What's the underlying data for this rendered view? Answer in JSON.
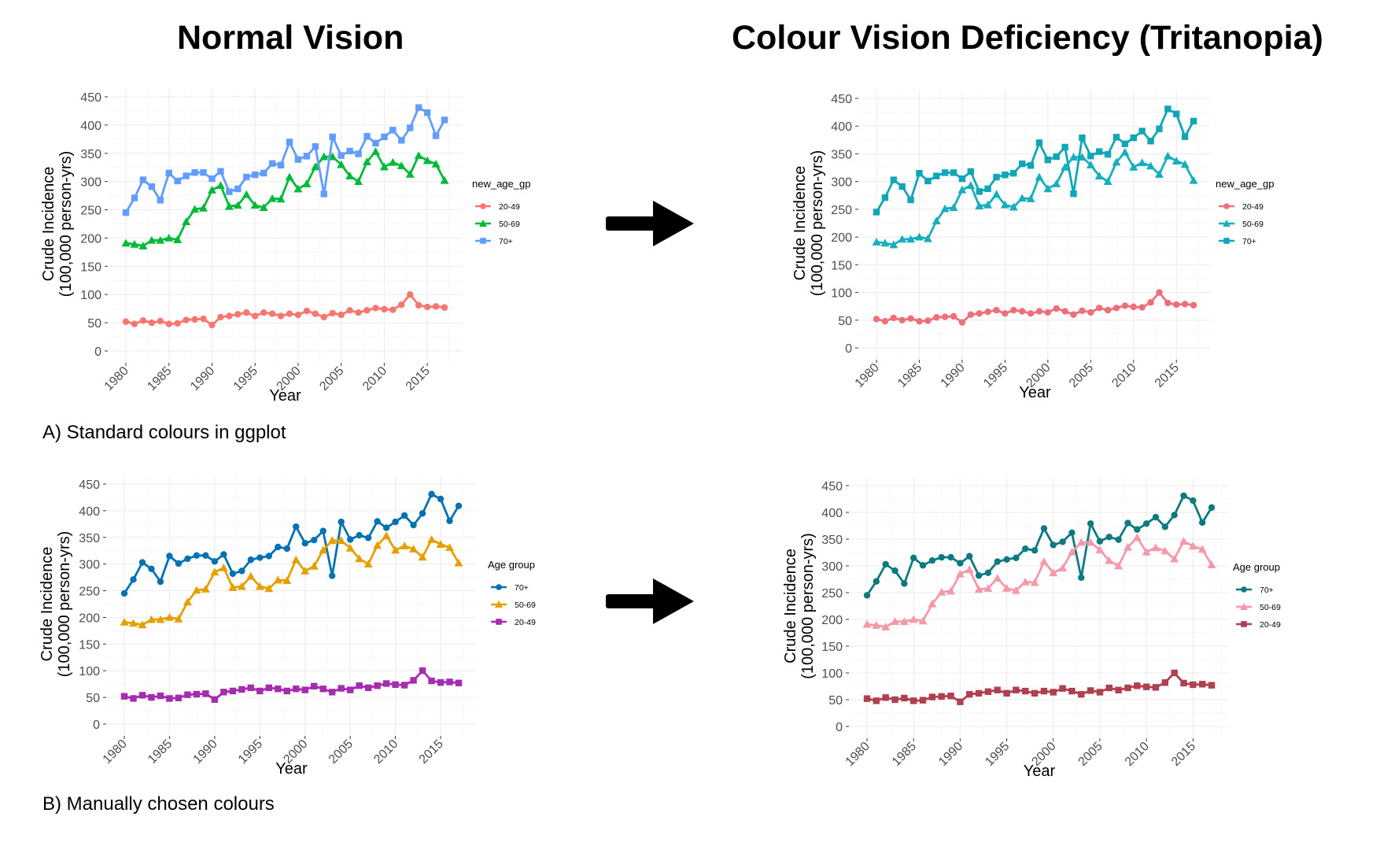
{
  "headings": {
    "left": "Normal Vision",
    "right": "Colour Vision Deficiency (Tritanopia)"
  },
  "captions": {
    "a": "A) Standard colours in ggplot",
    "b": "B) Manually chosen colours"
  },
  "icons": {
    "arrow_top": "right-arrow-icon",
    "arrow_bottom": "right-arrow-icon"
  },
  "chart_data": [
    {
      "type": "line",
      "xlabel": "Year",
      "ylabel": [
        "Crude Incidence",
        "(100,000 person-yrs)"
      ],
      "ylim": [
        0,
        450
      ],
      "xlim": [
        1980,
        2017
      ],
      "yticks": [
        0,
        50,
        100,
        150,
        200,
        250,
        300,
        350,
        400,
        450
      ],
      "xticks": [
        1980,
        1985,
        1990,
        1995,
        2000,
        2005,
        2010,
        2015
      ],
      "grid": true,
      "legend_title": "new_age_gp",
      "legend_placement": "right",
      "x": [
        1980,
        1981,
        1982,
        1983,
        1984,
        1985,
        1986,
        1987,
        1988,
        1989,
        1990,
        1991,
        1992,
        1993,
        1994,
        1995,
        1996,
        1997,
        1998,
        1999,
        2000,
        2001,
        2002,
        2003,
        2004,
        2005,
        2006,
        2007,
        2008,
        2009,
        2010,
        2011,
        2012,
        2013,
        2014,
        2015,
        2016,
        2017
      ],
      "series": [
        {
          "name": "20-49",
          "color": "#F8766D",
          "marker": "circle",
          "values": [
            52,
            48,
            54,
            50,
            53,
            48,
            49,
            55,
            56,
            57,
            46,
            60,
            62,
            65,
            68,
            62,
            68,
            66,
            62,
            66,
            64,
            71,
            66,
            60,
            67,
            64,
            72,
            68,
            72,
            76,
            74,
            73,
            82,
            100,
            81,
            78,
            79,
            77
          ]
        },
        {
          "name": "50-69",
          "color": "#00BA38",
          "marker": "triangle",
          "values": [
            191,
            189,
            186,
            196,
            196,
            200,
            197,
            229,
            251,
            253,
            285,
            293,
            256,
            258,
            277,
            258,
            254,
            270,
            269,
            308,
            287,
            296,
            326,
            344,
            344,
            330,
            310,
            300,
            335,
            353,
            326,
            334,
            328,
            313,
            346,
            337,
            331,
            302
          ]
        },
        {
          "name": "70+",
          "color": "#619CFF",
          "marker": "square",
          "values": [
            245,
            271,
            303,
            291,
            267,
            315,
            301,
            310,
            316,
            316,
            305,
            318,
            282,
            287,
            308,
            312,
            315,
            332,
            329,
            370,
            339,
            345,
            362,
            278,
            379,
            346,
            354,
            349,
            380,
            368,
            379,
            391,
            373,
            395,
            431,
            422,
            381,
            409
          ]
        }
      ]
    },
    {
      "type": "line",
      "xlabel": "Year",
      "ylabel": [
        "Crude Incidence",
        "(100,000 person-yrs)"
      ],
      "ylim": [
        0,
        450
      ],
      "xlim": [
        1980,
        2017
      ],
      "yticks": [
        0,
        50,
        100,
        150,
        200,
        250,
        300,
        350,
        400,
        450
      ],
      "xticks": [
        1980,
        1985,
        1990,
        1995,
        2000,
        2005,
        2010,
        2015
      ],
      "grid": true,
      "legend_title": "new_age_gp",
      "legend_placement": "right",
      "x": [
        1980,
        1981,
        1982,
        1983,
        1984,
        1985,
        1986,
        1987,
        1988,
        1989,
        1990,
        1991,
        1992,
        1993,
        1994,
        1995,
        1996,
        1997,
        1998,
        1999,
        2000,
        2001,
        2002,
        2003,
        2004,
        2005,
        2006,
        2007,
        2008,
        2009,
        2010,
        2011,
        2012,
        2013,
        2014,
        2015,
        2016,
        2017
      ],
      "series": [
        {
          "name": "20-49",
          "color": "#EE6E79",
          "marker": "circle",
          "values": [
            52,
            48,
            54,
            50,
            53,
            48,
            49,
            55,
            56,
            57,
            46,
            60,
            62,
            65,
            68,
            62,
            68,
            66,
            62,
            66,
            64,
            71,
            66,
            60,
            67,
            64,
            72,
            68,
            72,
            76,
            74,
            73,
            82,
            100,
            81,
            78,
            79,
            77
          ]
        },
        {
          "name": "50-69",
          "color": "#17AEBD",
          "marker": "triangle",
          "values": [
            191,
            189,
            186,
            196,
            196,
            200,
            197,
            229,
            251,
            253,
            285,
            293,
            256,
            258,
            277,
            258,
            254,
            270,
            269,
            308,
            287,
            296,
            326,
            344,
            344,
            330,
            310,
            300,
            335,
            353,
            326,
            334,
            328,
            313,
            346,
            337,
            331,
            302
          ]
        },
        {
          "name": "70+",
          "color": "#10A6B8",
          "marker": "square",
          "values": [
            245,
            271,
            303,
            291,
            267,
            315,
            301,
            310,
            316,
            316,
            305,
            318,
            282,
            287,
            308,
            312,
            315,
            332,
            329,
            370,
            339,
            345,
            362,
            278,
            379,
            346,
            354,
            349,
            380,
            368,
            379,
            391,
            373,
            395,
            431,
            422,
            381,
            409
          ]
        }
      ]
    },
    {
      "type": "line",
      "xlabel": "Year",
      "ylabel": [
        "Crude Incidence",
        "(100,000 person-yrs)"
      ],
      "ylim": [
        0,
        450
      ],
      "xlim": [
        1980,
        2017
      ],
      "yticks": [
        0,
        50,
        100,
        150,
        200,
        250,
        300,
        350,
        400,
        450
      ],
      "xticks": [
        1980,
        1985,
        1990,
        1995,
        2000,
        2005,
        2010,
        2015
      ],
      "grid": true,
      "legend_title": "Age group",
      "legend_placement": "right",
      "x": [
        1980,
        1981,
        1982,
        1983,
        1984,
        1985,
        1986,
        1987,
        1988,
        1989,
        1990,
        1991,
        1992,
        1993,
        1994,
        1995,
        1996,
        1997,
        1998,
        1999,
        2000,
        2001,
        2002,
        2003,
        2004,
        2005,
        2006,
        2007,
        2008,
        2009,
        2010,
        2011,
        2012,
        2013,
        2014,
        2015,
        2016,
        2017
      ],
      "series": [
        {
          "name": "70+",
          "color": "#0072B2",
          "marker": "circle",
          "values": [
            245,
            271,
            303,
            291,
            267,
            315,
            301,
            310,
            316,
            316,
            305,
            318,
            282,
            287,
            308,
            312,
            315,
            332,
            329,
            370,
            339,
            345,
            362,
            278,
            379,
            346,
            354,
            349,
            380,
            368,
            379,
            391,
            373,
            395,
            431,
            422,
            381,
            409
          ]
        },
        {
          "name": "50-69",
          "color": "#E69F00",
          "marker": "triangle",
          "values": [
            191,
            189,
            186,
            196,
            196,
            200,
            197,
            229,
            251,
            253,
            285,
            293,
            256,
            258,
            277,
            258,
            254,
            270,
            269,
            308,
            287,
            296,
            326,
            344,
            344,
            330,
            310,
            300,
            335,
            353,
            326,
            334,
            328,
            313,
            346,
            337,
            331,
            302
          ]
        },
        {
          "name": "20-49",
          "color": "#A52BAF",
          "marker": "square",
          "values": [
            52,
            48,
            54,
            50,
            53,
            48,
            49,
            55,
            56,
            57,
            46,
            60,
            62,
            65,
            68,
            62,
            68,
            66,
            62,
            66,
            64,
            71,
            66,
            60,
            67,
            64,
            72,
            68,
            72,
            76,
            74,
            73,
            82,
            100,
            81,
            78,
            79,
            77
          ]
        }
      ]
    },
    {
      "type": "line",
      "xlabel": "Year",
      "ylabel": [
        "Crude Incidence",
        "(100,000 person-yrs)"
      ],
      "ylim": [
        0,
        450
      ],
      "xlim": [
        1980,
        2017
      ],
      "yticks": [
        0,
        50,
        100,
        150,
        200,
        250,
        300,
        350,
        400,
        450
      ],
      "xticks": [
        1980,
        1985,
        1990,
        1995,
        2000,
        2005,
        2010,
        2015
      ],
      "grid": true,
      "legend_title": "Age group",
      "legend_placement": "right",
      "x": [
        1980,
        1981,
        1982,
        1983,
        1984,
        1985,
        1986,
        1987,
        1988,
        1989,
        1990,
        1991,
        1992,
        1993,
        1994,
        1995,
        1996,
        1997,
        1998,
        1999,
        2000,
        2001,
        2002,
        2003,
        2004,
        2005,
        2006,
        2007,
        2008,
        2009,
        2010,
        2011,
        2012,
        2013,
        2014,
        2015,
        2016,
        2017
      ],
      "series": [
        {
          "name": "70+",
          "color": "#0E7A80",
          "marker": "circle",
          "values": [
            245,
            271,
            303,
            291,
            267,
            315,
            301,
            310,
            316,
            316,
            305,
            318,
            282,
            287,
            308,
            312,
            315,
            332,
            329,
            370,
            339,
            345,
            362,
            278,
            379,
            346,
            354,
            349,
            380,
            368,
            379,
            391,
            373,
            395,
            431,
            422,
            381,
            409
          ]
        },
        {
          "name": "50-69",
          "color": "#F598AA",
          "marker": "triangle",
          "values": [
            191,
            189,
            186,
            196,
            196,
            200,
            197,
            229,
            251,
            253,
            285,
            293,
            256,
            258,
            277,
            258,
            254,
            270,
            269,
            308,
            287,
            296,
            326,
            344,
            344,
            330,
            310,
            300,
            335,
            353,
            326,
            334,
            328,
            313,
            346,
            337,
            331,
            302
          ]
        },
        {
          "name": "20-49",
          "color": "#B0404F",
          "marker": "square",
          "values": [
            52,
            48,
            54,
            50,
            53,
            48,
            49,
            55,
            56,
            57,
            46,
            60,
            62,
            65,
            68,
            62,
            68,
            66,
            62,
            66,
            64,
            71,
            66,
            60,
            67,
            64,
            72,
            68,
            72,
            76,
            74,
            73,
            82,
            100,
            81,
            78,
            79,
            77
          ]
        }
      ]
    }
  ]
}
